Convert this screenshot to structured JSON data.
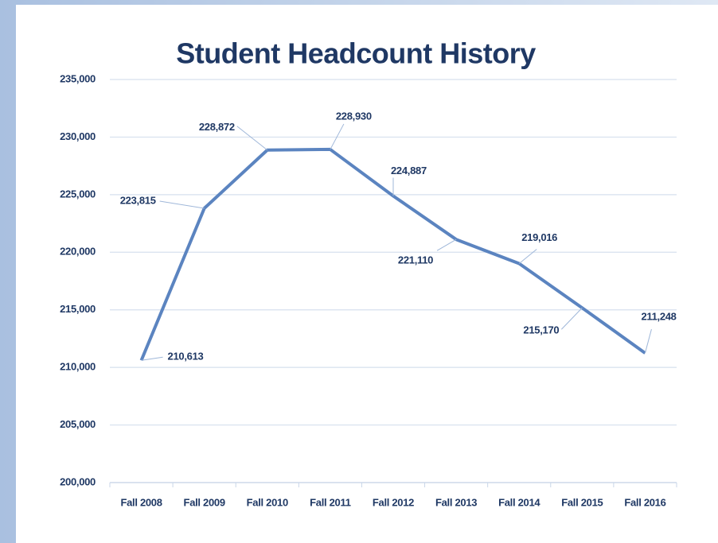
{
  "chart_data": {
    "type": "line",
    "title": "Student Headcount History",
    "categories": [
      "Fall 2008",
      "Fall 2009",
      "Fall 2010",
      "Fall 2011",
      "Fall 2012",
      "Fall 2013",
      "Fall 2014",
      "Fall 2015",
      "Fall 2016"
    ],
    "series": [
      {
        "name": "Headcount",
        "color": "#5b84c0",
        "values": [
          210613,
          223815,
          228872,
          228930,
          224887,
          221110,
          219016,
          215170,
          211248
        ],
        "value_labels": [
          "210,613",
          "223,815",
          "228,872",
          "228,930",
          "224,887",
          "221,110",
          "219,016",
          "215,170",
          "211,248"
        ]
      }
    ],
    "ylim": [
      200000,
      235000
    ],
    "yticks": [
      {
        "value": 200000,
        "label": "200,000"
      },
      {
        "value": 205000,
        "label": "205,000"
      },
      {
        "value": 210000,
        "label": "210,000"
      },
      {
        "value": 215000,
        "label": "215,000"
      },
      {
        "value": 220000,
        "label": "220,000"
      },
      {
        "value": 225000,
        "label": "225,000"
      },
      {
        "value": 230000,
        "label": "230,000"
      },
      {
        "value": 235000,
        "label": "235,000"
      }
    ],
    "grid": true
  }
}
